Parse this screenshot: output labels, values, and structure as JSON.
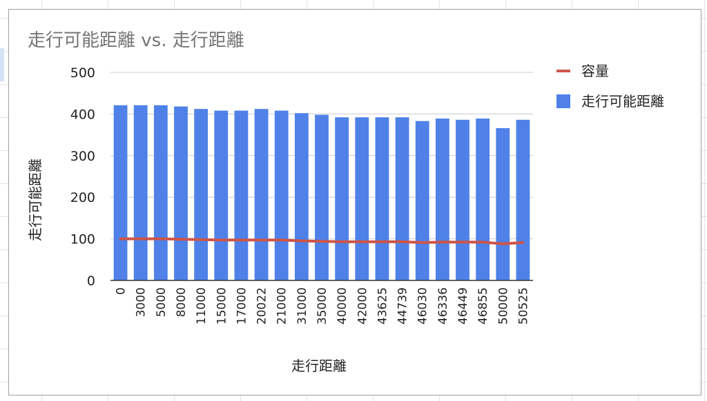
{
  "chart_data": {
    "type": "bar",
    "title": "走行可能距離 vs. 走行距離",
    "xlabel": "走行距離",
    "ylabel": "走行可能距離",
    "ylim": [
      0,
      500
    ],
    "yticks": [
      0,
      100,
      200,
      300,
      400,
      500
    ],
    "grid": true,
    "legend_position": "right",
    "categories": [
      "0",
      "3000",
      "5000",
      "8000",
      "11000",
      "15000",
      "17000",
      "20022",
      "21000",
      "31000",
      "35000",
      "40000",
      "42000",
      "43625",
      "44739",
      "46030",
      "46336",
      "46449",
      "46855",
      "50000",
      "50525"
    ],
    "series": [
      {
        "name": "走行可能距離",
        "type": "bar",
        "color": "#4f81e8",
        "values": [
          421,
          421,
          421,
          418,
          412,
          408,
          408,
          412,
          408,
          402,
          398,
          392,
          392,
          392,
          392,
          383,
          389,
          386,
          389,
          366,
          386
        ]
      },
      {
        "name": "容量",
        "type": "line",
        "color": "#cd5548",
        "values": [
          100,
          100,
          100,
          99,
          98,
          97,
          97,
          97,
          97,
          95,
          94,
          93,
          93,
          93,
          93,
          91,
          92,
          92,
          92,
          88,
          91
        ]
      }
    ],
    "legend": [
      "容量",
      "走行可能距離"
    ]
  }
}
